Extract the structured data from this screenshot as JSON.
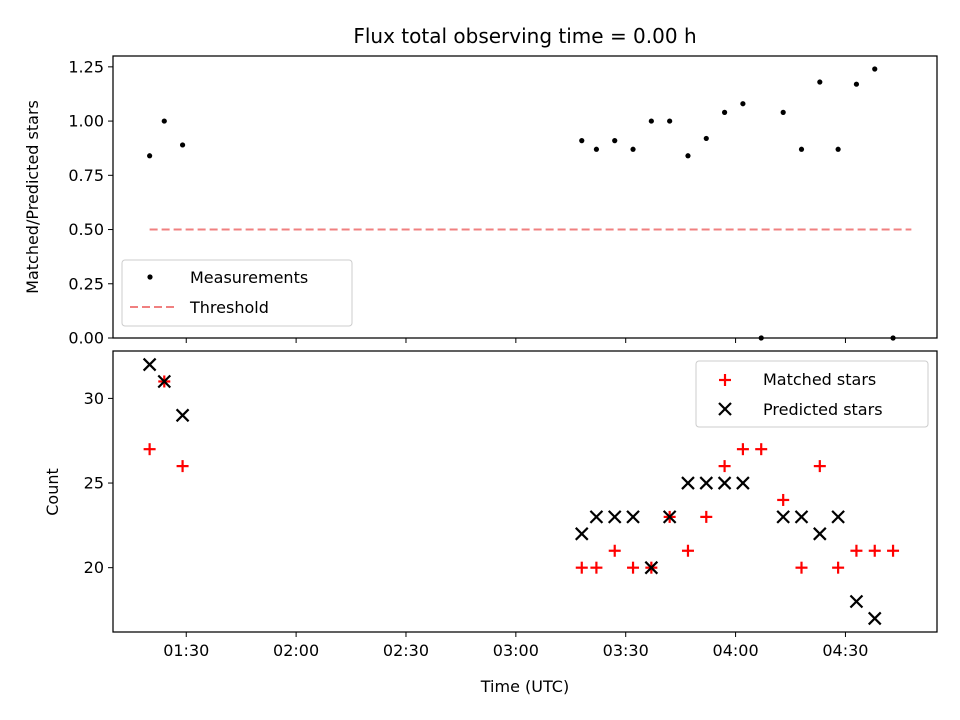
{
  "chart_data": [
    {
      "type": "scatter",
      "title": "Flux total observing time = 0.00 h",
      "xlabel": "",
      "ylabel": "Matched/Predicted stars",
      "xlim": [
        70,
        295
      ],
      "ylim": [
        0.0,
        1.3
      ],
      "yticks": [
        0.0,
        0.25,
        0.5,
        0.75,
        1.0,
        1.25
      ],
      "ytick_labels": [
        "0.00",
        "0.25",
        "0.50",
        "0.75",
        "1.00",
        "1.25"
      ],
      "series": [
        {
          "name": "Measurements",
          "marker": "dot",
          "color": "#000000",
          "x": [
            80,
            84,
            89,
            198,
            202,
            207,
            212,
            217,
            222,
            227,
            232,
            237,
            242,
            247,
            253,
            258,
            263,
            268,
            273,
            278,
            283
          ],
          "y": [
            0.84,
            1.0,
            0.89,
            0.91,
            0.87,
            0.91,
            0.87,
            1.0,
            1.0,
            0.84,
            0.92,
            1.04,
            1.08,
            0.0,
            1.04,
            0.87,
            1.18,
            0.87,
            1.17,
            1.24,
            0.0
          ]
        },
        {
          "name": "Threshold",
          "type": "line",
          "style": "dashed",
          "color": "#f08080",
          "x": [
            80,
            288
          ],
          "y": [
            0.5,
            0.5
          ]
        }
      ],
      "legend": [
        "Measurements",
        "Threshold"
      ],
      "legend_position": "lower-left"
    },
    {
      "type": "scatter",
      "title": "",
      "xlabel": "Time (UTC)",
      "ylabel": "Count",
      "xlim": [
        70,
        295
      ],
      "ylim": [
        16.2,
        32.8
      ],
      "yticks": [
        20,
        25,
        30
      ],
      "ytick_labels": [
        "20",
        "25",
        "30"
      ],
      "xticks": [
        90,
        120,
        150,
        180,
        210,
        240,
        270
      ],
      "xtick_labels": [
        "01:30",
        "02:00",
        "02:30",
        "03:00",
        "03:30",
        "04:00",
        "04:30"
      ],
      "series": [
        {
          "name": "Matched stars",
          "marker": "plus",
          "color": "#ff0000",
          "x": [
            80,
            84,
            89,
            198,
            202,
            207,
            212,
            217,
            222,
            227,
            232,
            237,
            242,
            247,
            253,
            258,
            263,
            268,
            273,
            278,
            283
          ],
          "y": [
            27,
            31,
            26,
            20,
            20,
            21,
            20,
            20,
            23,
            21,
            23,
            26,
            27,
            27,
            24,
            20,
            26,
            20,
            21,
            21,
            21
          ]
        },
        {
          "name": "Predicted stars",
          "marker": "x",
          "color": "#000000",
          "x": [
            80,
            84,
            89,
            198,
            202,
            207,
            212,
            217,
            222,
            227,
            232,
            237,
            242,
            253,
            258,
            263,
            268,
            273,
            278
          ],
          "y": [
            32,
            31,
            29,
            22,
            23,
            23,
            23,
            20,
            23,
            25,
            25,
            25,
            25,
            23,
            23,
            22,
            23,
            18,
            17
          ]
        }
      ],
      "legend": [
        "Matched stars",
        "Predicted stars"
      ],
      "legend_position": "upper-right"
    }
  ]
}
